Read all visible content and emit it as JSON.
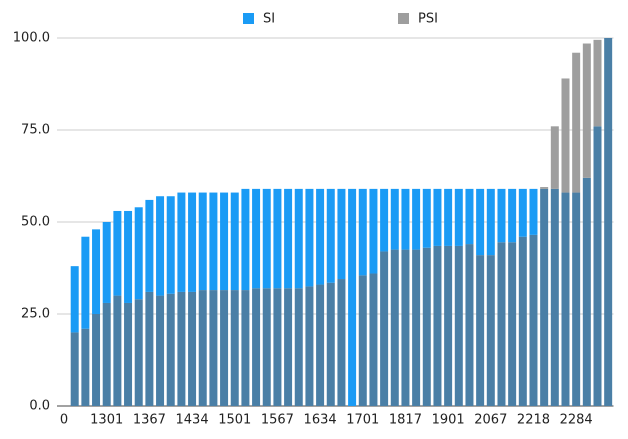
{
  "chart_data": {
    "type": "stacked-bar",
    "categories": [
      "0",
      null,
      null,
      null,
      "1301",
      null,
      null,
      null,
      "1367",
      null,
      null,
      null,
      "1434",
      null,
      null,
      null,
      "1501",
      null,
      null,
      null,
      "1567",
      null,
      null,
      null,
      "1634",
      null,
      null,
      null,
      "1701",
      null,
      null,
      null,
      "1817",
      null,
      null,
      null,
      "1901",
      null,
      null,
      null,
      "2067",
      null,
      null,
      null,
      "2218",
      null,
      null,
      null,
      "2284",
      null,
      null,
      null
    ],
    "series": [
      {
        "color": "#4a7fa6",
        "values": [
          0,
          20,
          21,
          25,
          28,
          30,
          28,
          29,
          31,
          30,
          30.5,
          31,
          31,
          31.5,
          31.5,
          31.5,
          31.5,
          31.5,
          32,
          32,
          32,
          32,
          32,
          32.5,
          33,
          33.5,
          34.5,
          0,
          35.5,
          36,
          42,
          42.5,
          42.5,
          42.5,
          43,
          43.5,
          43.5,
          43.5,
          44,
          41,
          41,
          44.5,
          44.5,
          46,
          46.5,
          59,
          59,
          58,
          58,
          62,
          76,
          100
        ]
      },
      {
        "name": "SI",
        "color": "#1a9bf5",
        "values": [
          0,
          18,
          25,
          23,
          22,
          23,
          25,
          25,
          25,
          27,
          26.5,
          27,
          27,
          26.5,
          26.5,
          26.5,
          26.5,
          27.5,
          27,
          27,
          27,
          27,
          27,
          26.5,
          26,
          25.5,
          24.5,
          59,
          23.5,
          23,
          17,
          16.5,
          16.5,
          16.5,
          16,
          15.5,
          15.5,
          15.5,
          15,
          18,
          18,
          14.5,
          14.5,
          13,
          12.5,
          0,
          0,
          0,
          0,
          0,
          0,
          0
        ]
      },
      {
        "name": "PSI",
        "color": "#9e9e9e",
        "values": [
          0,
          0,
          0,
          0,
          0,
          0,
          0,
          0,
          0,
          0,
          0,
          0,
          0,
          0,
          0,
          0,
          0,
          0,
          0,
          0,
          0,
          0,
          0,
          0,
          0,
          0,
          0,
          0,
          0,
          0,
          0,
          0,
          0,
          0,
          0,
          0,
          0,
          0,
          0,
          0,
          0,
          0,
          0,
          0,
          0,
          0.5,
          17,
          31,
          38,
          36.5,
          23.5,
          0
        ]
      }
    ],
    "ylim": [
      0,
      100
    ],
    "yticks": [
      {
        "value": 0,
        "label": "0.0"
      },
      {
        "value": 25,
        "label": "25.0"
      },
      {
        "value": 50,
        "label": "50.0"
      },
      {
        "value": 75,
        "label": "75.0"
      },
      {
        "value": 100,
        "label": "100.0"
      }
    ],
    "grid": true,
    "legend": "top"
  }
}
